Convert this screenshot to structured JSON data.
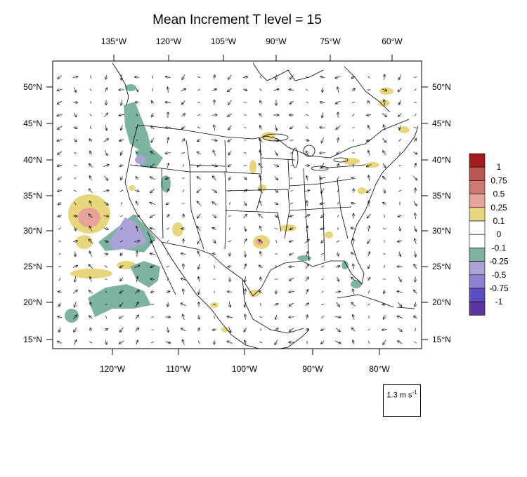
{
  "title": "Mean Increment T level = 15",
  "top_lon_labels": [
    "135°W",
    "120°W",
    "105°W",
    "90°W",
    "75°W",
    "60°W"
  ],
  "bottom_lon_labels": [
    "120°W",
    "110°W",
    "100°W",
    "90°W",
    "80°W"
  ],
  "lat_labels": [
    "50°N",
    "45°N",
    "40°N",
    "35°N",
    "30°N",
    "25°N",
    "20°N",
    "15°N"
  ],
  "colorbar": {
    "labels": [
      "1",
      "0.75",
      "0.5",
      "0.25",
      "0.1",
      "0",
      "-0.1",
      "-0.25",
      "-0.5",
      "-0.75",
      "-1"
    ],
    "colors": [
      "#a41d1d",
      "#b8574f",
      "#cd7a74",
      "#e7a29a",
      "#e7d67c",
      "#ffffff",
      "#ffffff",
      "#7db3a1",
      "#aba3d7",
      "#8b84d0",
      "#5a4fc4",
      "#5b35a0"
    ]
  },
  "reference_vector": {
    "label": "1.3 m s",
    "superscript": "-1"
  },
  "shading_legend": {
    "positive_color": "#e7d67c",
    "positive_strong_color": "#e7a29a",
    "negative_color": "#7db3a1",
    "negative_strong_color": "#aba3d7"
  }
}
